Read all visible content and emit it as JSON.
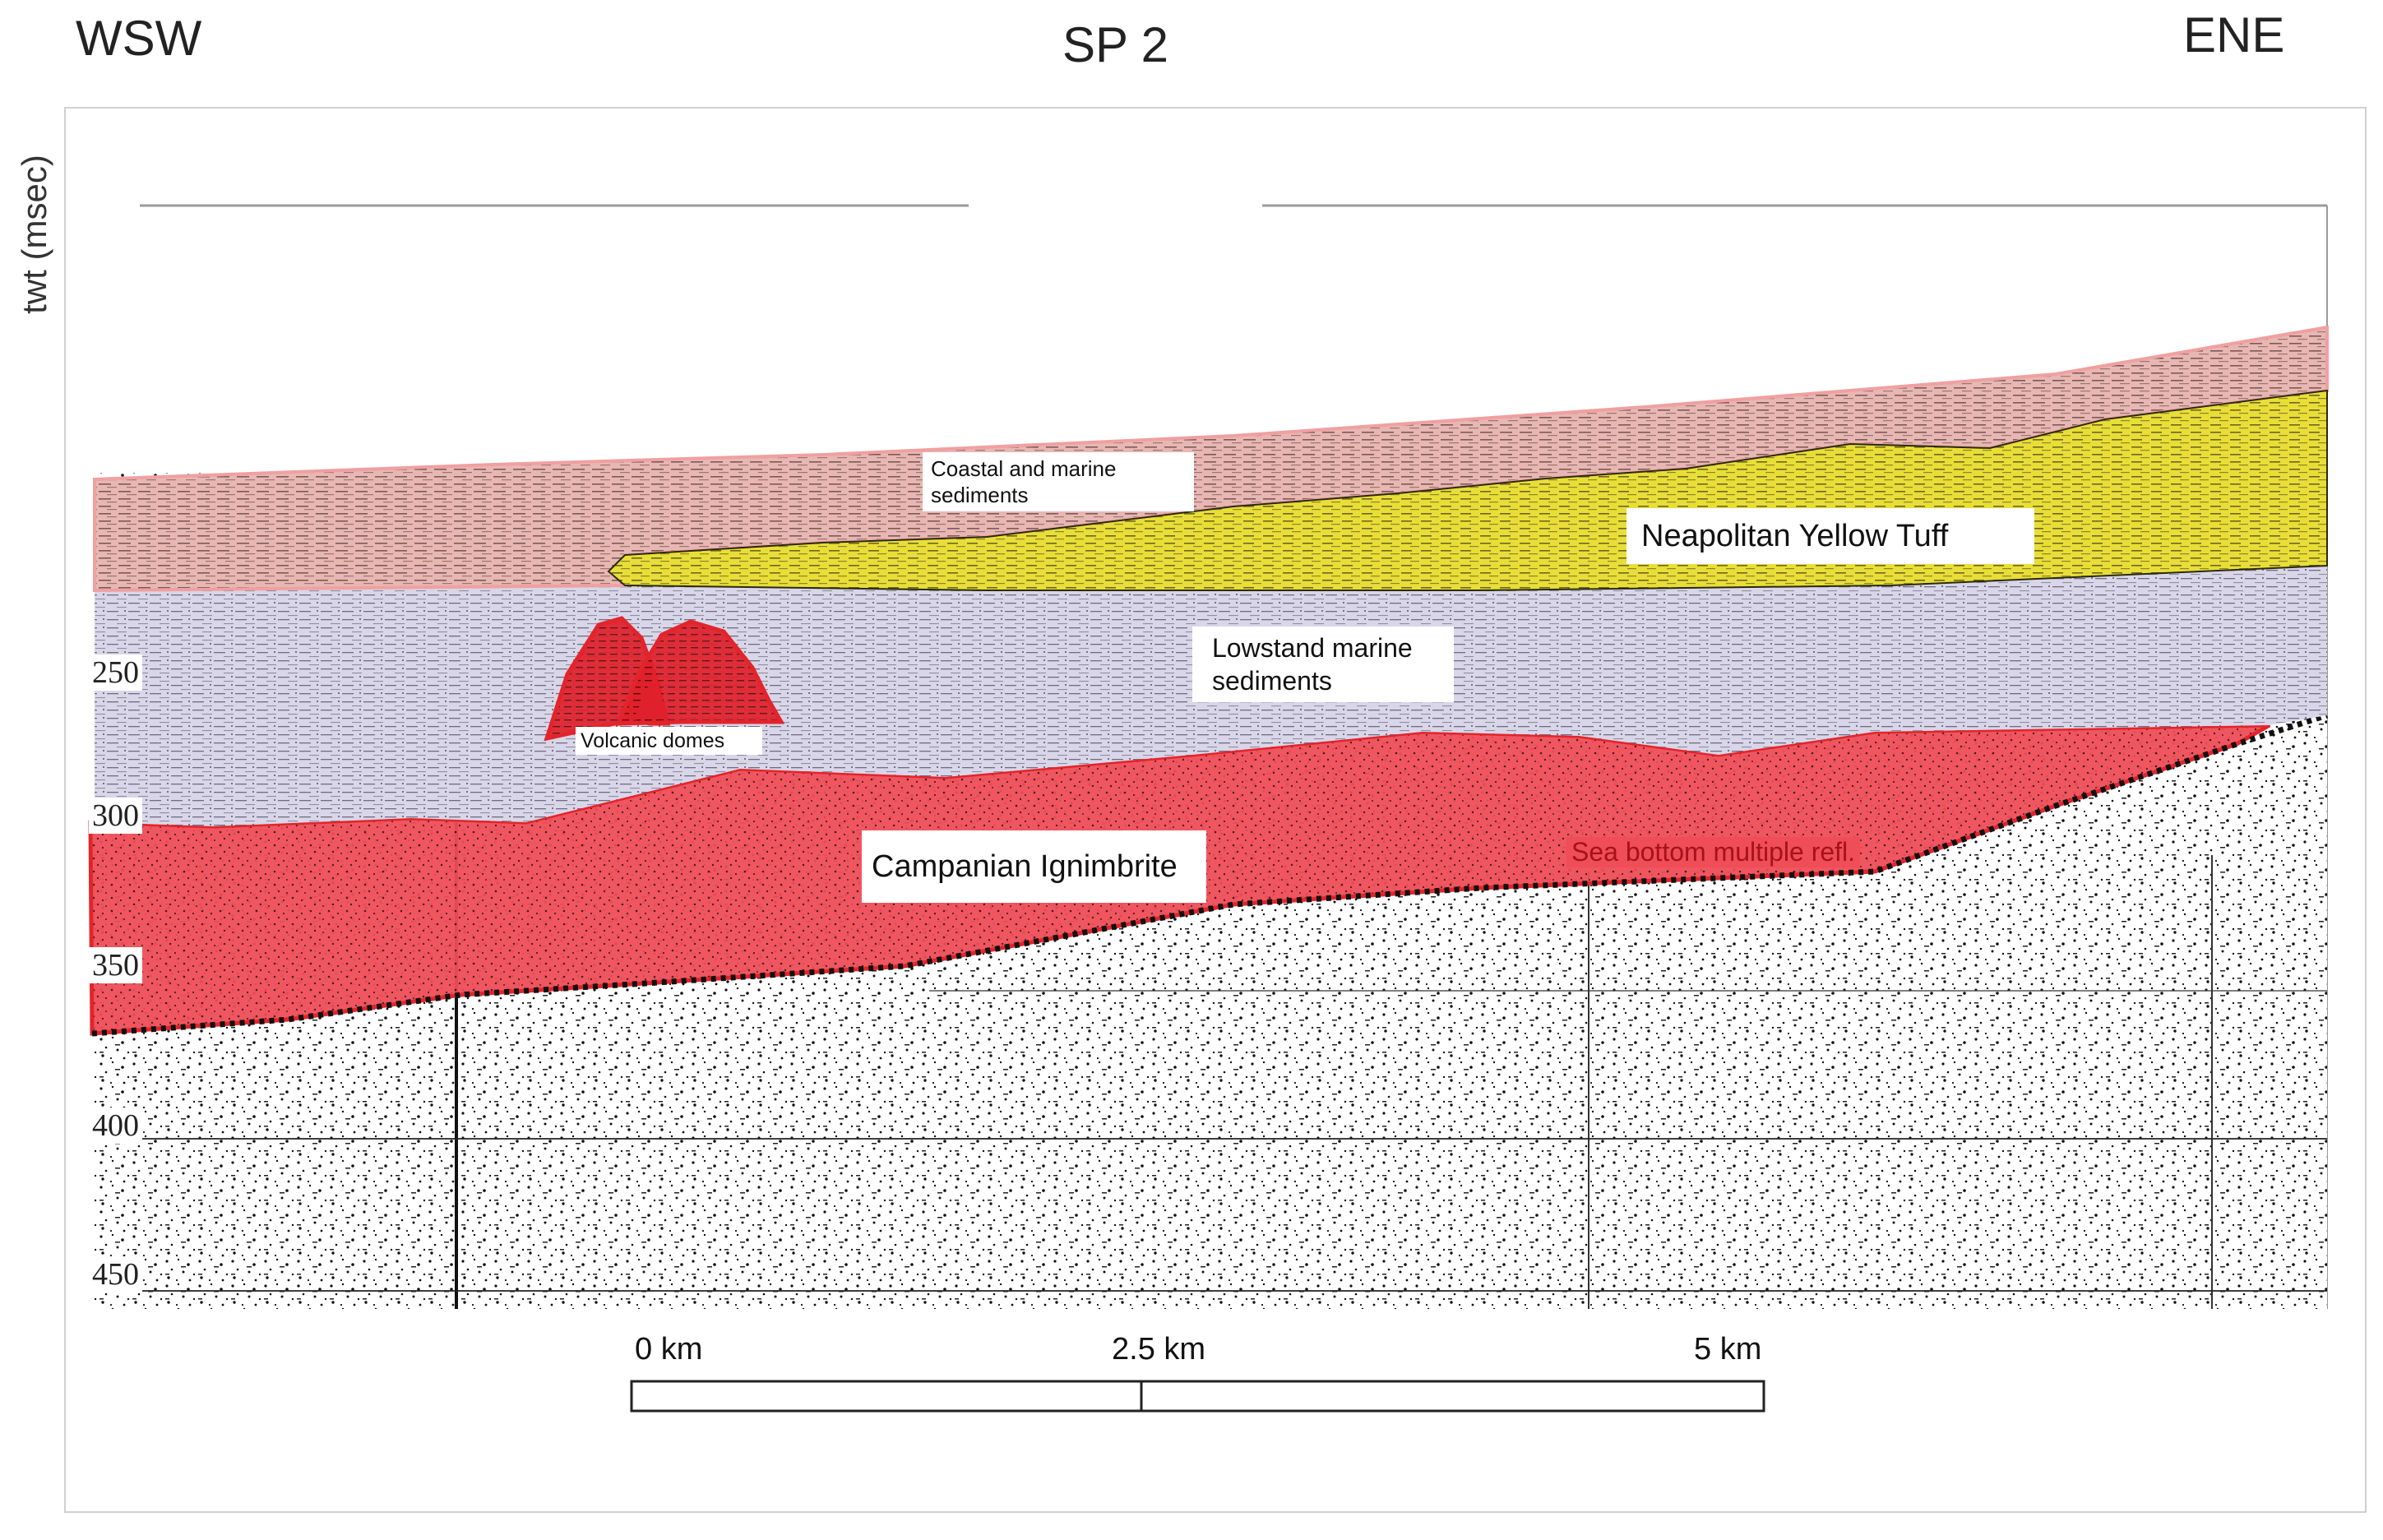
{
  "header": {
    "left_direction": "WSW",
    "title": "SP 2",
    "right_direction": "ENE"
  },
  "y_axis": {
    "title": "twt (msec)",
    "ticks": [
      "250",
      "300",
      "350",
      "400",
      "450"
    ]
  },
  "units": {
    "coastal_marine": "Coastal and marine sediments",
    "neapolitan_yellow_tuff": "Neapolitan Yellow Tuff",
    "lowstand_marine": "Lowstand marine sediments",
    "volcanic_domes": "Volcanic domes",
    "campanian_ignimbrite": "Campanian Ignimbrite",
    "sea_bottom_multiple": "Sea bottom multiple refl."
  },
  "scale_bar": {
    "labels": [
      "0 km",
      "2.5 km",
      "5 km"
    ]
  },
  "colors": {
    "coastal_marine": "#e8b7b3",
    "neapolitan_yellow_tuff": "#e9de38",
    "lowstand_marine": "#d8d6e8",
    "campanian_ignimbrite": "#ef4d57",
    "volcanic_domes": "#e0202a",
    "boundary_red": "#e3242b",
    "basement_dots": "#111111"
  }
}
